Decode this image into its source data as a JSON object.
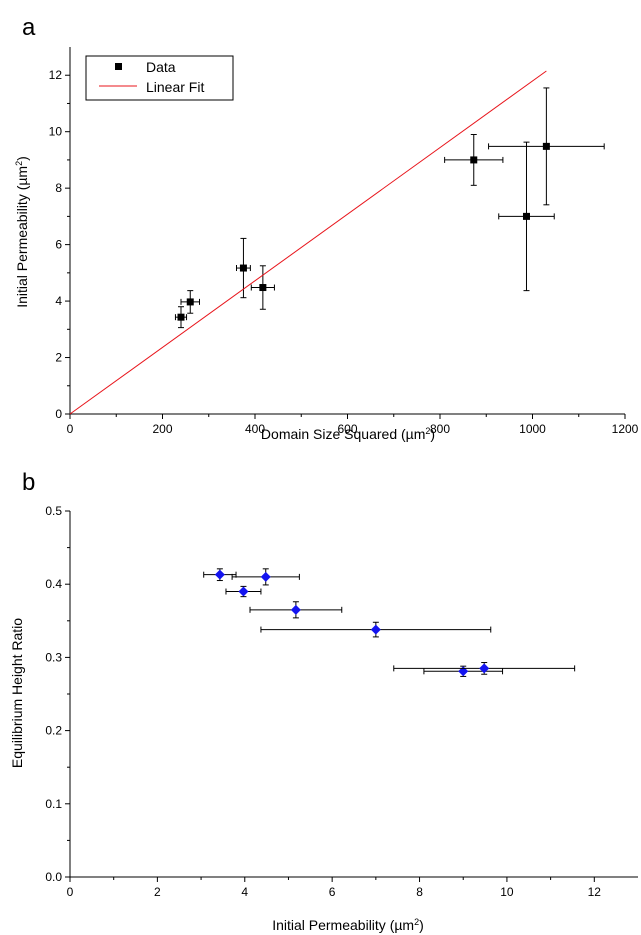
{
  "chart_data": [
    {
      "panel_label": "a",
      "type": "scatter",
      "xlabel": "Domain Size Squared (µm",
      "xlabel_sup": "2",
      "xlabel_end": ")",
      "ylabel": "Initial Permeability (µm",
      "ylabel_sup": "2",
      "ylabel_end": ")",
      "xlim": [
        0,
        1200
      ],
      "ylim": [
        0,
        13
      ],
      "x_ticks": [
        0,
        200,
        400,
        600,
        800,
        1000,
        1200
      ],
      "y_ticks": [
        0,
        2,
        4,
        6,
        8,
        10,
        12
      ],
      "legend": {
        "placement": "top-left",
        "data_label": "Data",
        "fit_label": "Linear Fit"
      },
      "series": [
        {
          "name": "Data",
          "marker": "square",
          "color": "#000000",
          "points": [
            {
              "x": 240,
              "y": 3.43,
              "xerr": 12,
              "yerr": 0.37
            },
            {
              "x": 260,
              "y": 3.97,
              "xerr": 20,
              "yerr": 0.4
            },
            {
              "x": 375,
              "y": 5.17,
              "xerr": 15,
              "yerr": 1.05
            },
            {
              "x": 417,
              "y": 4.48,
              "xerr": 25,
              "yerr": 0.77
            },
            {
              "x": 873,
              "y": 9.0,
              "xerr": 63,
              "yerr": 0.9
            },
            {
              "x": 987,
              "y": 7.0,
              "xerr": 60,
              "yerr": 2.63
            },
            {
              "x": 1030,
              "y": 9.48,
              "xerr": 125,
              "yerr": 2.07
            }
          ]
        },
        {
          "name": "Linear Fit",
          "type": "line",
          "color": "#e8141b",
          "x": [
            0,
            1030
          ],
          "y": [
            0,
            12.15
          ]
        }
      ]
    },
    {
      "panel_label": "b",
      "type": "scatter",
      "xlabel": "Initial Permeability (µm",
      "xlabel_sup": "2",
      "xlabel_end": ")",
      "ylabel": "Equilibrium Height Ratio",
      "xlim": [
        0,
        13
      ],
      "ylim": [
        0,
        0.5
      ],
      "x_ticks": [
        0,
        2,
        4,
        6,
        8,
        10,
        12
      ],
      "y_ticks": [
        "0.0",
        "0.1",
        "0.2",
        "0.3",
        "0.4",
        "0.5"
      ],
      "series": [
        {
          "marker": "diamond",
          "color": "#1414f0",
          "points": [
            {
              "x": 3.43,
              "y": 0.413,
              "xerr": 0.37,
              "yerr": 0.008
            },
            {
              "x": 3.97,
              "y": 0.39,
              "xerr": 0.4,
              "yerr": 0.007
            },
            {
              "x": 4.48,
              "y": 0.41,
              "xerr": 0.77,
              "yerr": 0.011
            },
            {
              "x": 5.17,
              "y": 0.365,
              "xerr": 1.05,
              "yerr": 0.011
            },
            {
              "x": 7.0,
              "y": 0.338,
              "xerr": 2.63,
              "yerr": 0.01
            },
            {
              "x": 9.0,
              "y": 0.281,
              "xerr": 0.9,
              "yerr": 0.007
            },
            {
              "x": 9.48,
              "y": 0.285,
              "xerr": 2.07,
              "yerr": 0.008
            }
          ]
        }
      ]
    }
  ]
}
